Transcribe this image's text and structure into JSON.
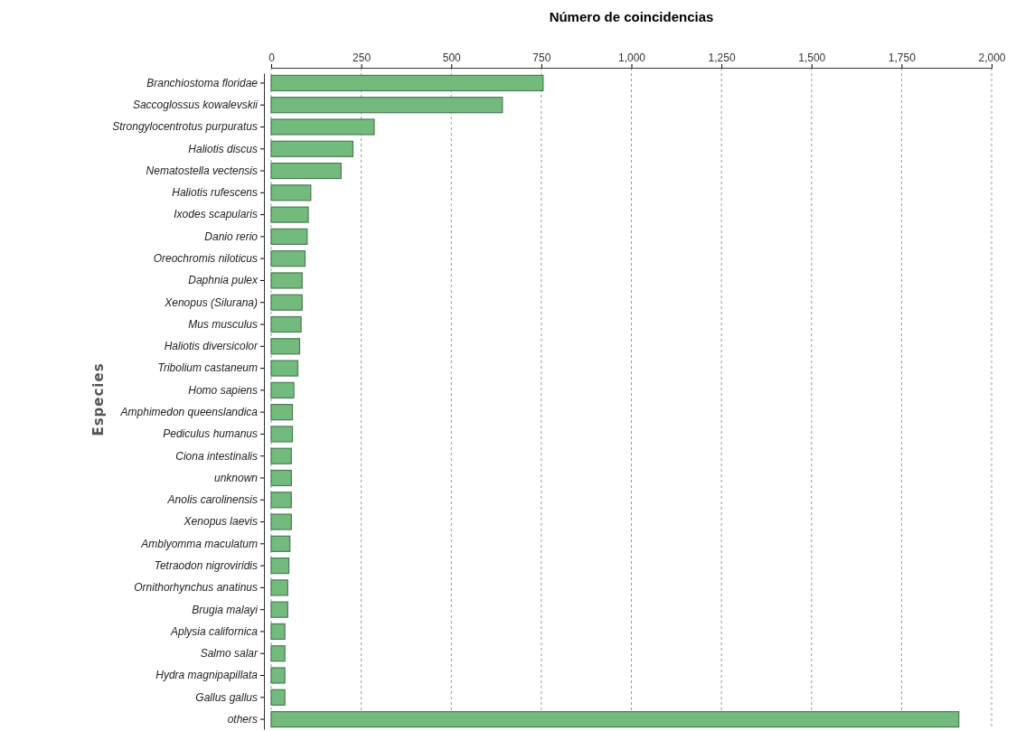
{
  "chart_data": {
    "type": "bar",
    "orientation": "horizontal",
    "xlabel": "Número de coincidencias",
    "ylabel": "Especies",
    "categories": [
      "Branchiostoma floridae",
      "Saccoglossus kowalevskii",
      "Strongylocentrotus purpuratus",
      "Haliotis discus",
      "Nematostella vectensis",
      "Haliotis rufescens",
      "Ixodes scapularis",
      "Danio rerio",
      "Oreochromis niloticus",
      "Daphnia pulex",
      "Xenopus (Silurana)",
      "Mus musculus",
      "Haliotis diversicolor",
      "Tribolium castaneum",
      "Homo sapiens",
      "Amphimedon queenslandica",
      "Pediculus humanus",
      "Ciona intestinalis",
      "unknown",
      "Anolis carolinensis",
      "Xenopus laevis",
      "Amblyomma maculatum",
      "Tetraodon nigroviridis",
      "Ornithorhynchus anatinus",
      "Brugia malayi",
      "Aplysia californica",
      "Salmo salar",
      "Hydra magnipapillata",
      "Gallus gallus",
      "others"
    ],
    "values": [
      755,
      642,
      286,
      227,
      194,
      110,
      103,
      100,
      94,
      86,
      86,
      83,
      79,
      74,
      63,
      59,
      59,
      56,
      56,
      56,
      56,
      52,
      49,
      46,
      46,
      38,
      38,
      38,
      38,
      1909
    ],
    "color": "#72bb7d",
    "xlim": [
      0,
      2000
    ],
    "xticks": [
      0,
      {
        "value": 250,
        "label": "250"
      },
      {
        "value": 500,
        "label": "500"
      },
      {
        "value": 750,
        "label": "750"
      },
      {
        "value": 1000,
        "label": "1,000"
      },
      {
        "value": 1250,
        "label": "1,250"
      },
      {
        "value": 1500,
        "label": "1,500"
      },
      {
        "value": 1750,
        "label": "1,750"
      },
      {
        "value": 2000,
        "label": "2,000"
      }
    ],
    "grid": "x"
  }
}
